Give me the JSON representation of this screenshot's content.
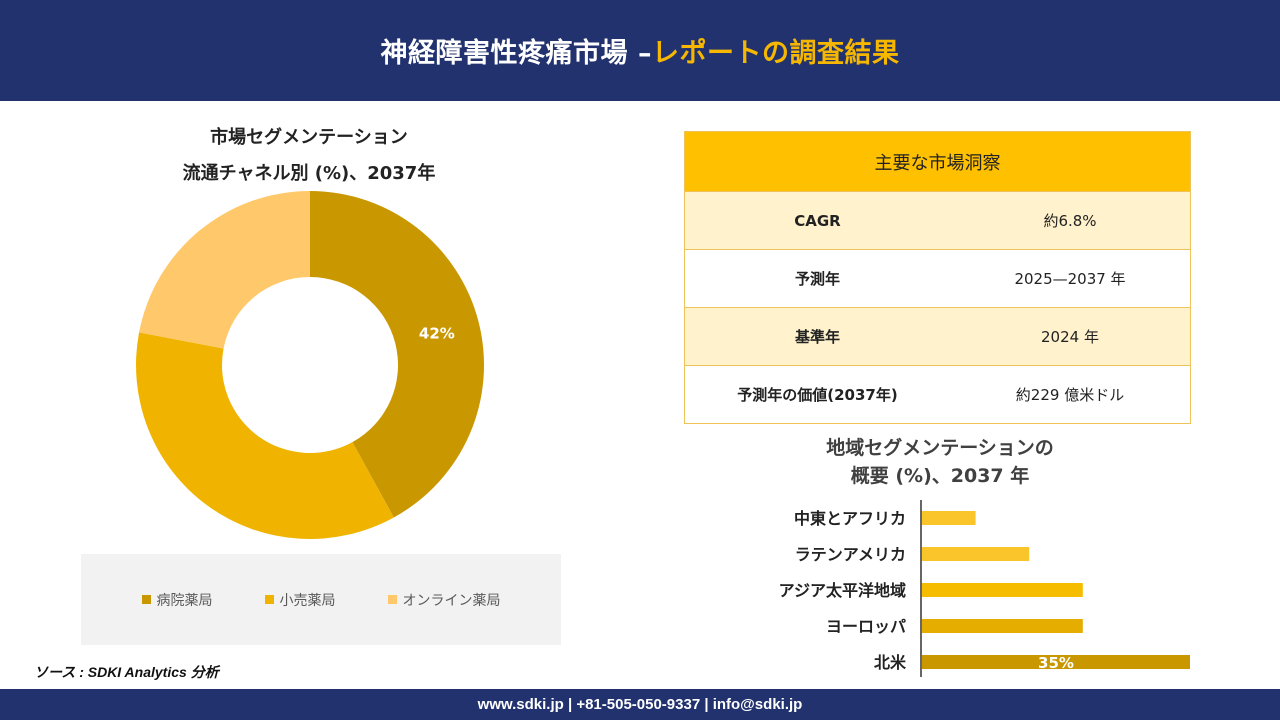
{
  "header": {
    "title_main": "神経障害性疼痛市場 –",
    "title_accent": "レポートの調査結果"
  },
  "footer": {
    "text": "www.sdki.jp | +81-505-050-9337 | info@sdki.jp"
  },
  "source": "ソース : SDKI Analytics 分析",
  "colors": {
    "header_bg": "#22326e",
    "accent": "#f6b700"
  },
  "donut": {
    "title_line1": "市場セグメンテーション",
    "title_line2": "流通チャネル別 (%)、2037年"
  },
  "insights": {
    "title": "主要な市場洞察",
    "rows": [
      {
        "label": "CAGR",
        "value": "約6.8%"
      },
      {
        "label": "予測年",
        "value": "2025—2037 年"
      },
      {
        "label": "基準年",
        "value": "2024 年"
      },
      {
        "label": "予測年の価値(2037年)",
        "value": "約229 億米ドル"
      }
    ]
  },
  "bars": {
    "title_line1": "地域セグメンテーションの",
    "title_line2": "概要 (%)、2037 年"
  },
  "chart_data": [
    {
      "type": "pie",
      "variant": "donut",
      "title": "市場セグメンテーション 流通チャネル別 (%)、2037年",
      "categories": [
        "病院薬局",
        "小売薬局",
        "オンライン薬局"
      ],
      "values": [
        42,
        36,
        22
      ],
      "value_labels": [
        "42%",
        "",
        ""
      ],
      "colors": [
        "#c99700",
        "#f0b400",
        "#ffc96b"
      ],
      "legend_position": "bottom"
    },
    {
      "type": "bar",
      "orientation": "horizontal",
      "title": "地域セグメンテーションの 概要 (%)、2037 年",
      "categories": [
        "中東とアフリカ",
        "ラテンアメリカ",
        "アジア太平洋地域",
        "ヨーロッパ",
        "北米"
      ],
      "values": [
        7,
        14,
        21,
        21,
        35
      ],
      "value_labels": [
        "",
        "",
        "",
        "",
        "35%"
      ],
      "colors": [
        "#f9c52a",
        "#f9c52a",
        "#f5bc00",
        "#e5ad00",
        "#c99700"
      ],
      "xlim": [
        0,
        35
      ],
      "grid": false
    }
  ]
}
